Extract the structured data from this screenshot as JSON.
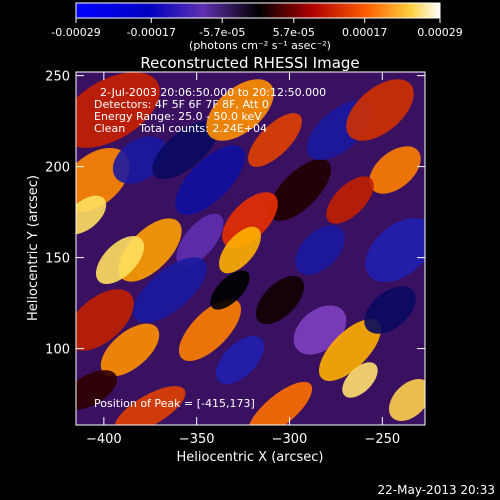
{
  "colorbar": {
    "tick_labels": [
      "-0.00029",
      "-0.00017",
      "-5.7e-05",
      "5.7e-05",
      "0.00017",
      "0.00029"
    ],
    "tick_values": [
      -0.00029,
      -0.00017,
      -5.7e-05,
      5.7e-05,
      0.00017,
      0.00029
    ],
    "range": [
      -0.00029,
      0.00029
    ],
    "unit_label": "(photons cm⁻² s⁻¹ asec⁻²)"
  },
  "plot": {
    "title": "Reconstructed RHESSI Image",
    "xlabel": "Heliocentric X (arcsec)",
    "ylabel": "Heliocentric Y (arcsec)",
    "xlim": [
      -415,
      -227
    ],
    "ylim": [
      58,
      252
    ],
    "x_ticks": [
      -400,
      -350,
      -300,
      -250
    ],
    "y_ticks": [
      100,
      150,
      200,
      250
    ],
    "x_tick_labels": [
      "−400",
      "−350",
      "−300",
      "−250"
    ],
    "y_tick_labels": [
      "100",
      "150",
      "200",
      "250"
    ]
  },
  "annotations": {
    "time_range": "2-Jul-2003 20:06:50.000 to 20:12:50.000",
    "detectors": "Detectors: 4F 5F 6F 7F 8F, Att 0",
    "energy": "Energy Range: 25.0 - 50.0 keV",
    "clean": "Clean    Total counts: 2.24E+04",
    "peak": "Position of Peak = [-415,173]"
  },
  "footer": {
    "timestamp": "22-May-2013 20:33"
  }
}
